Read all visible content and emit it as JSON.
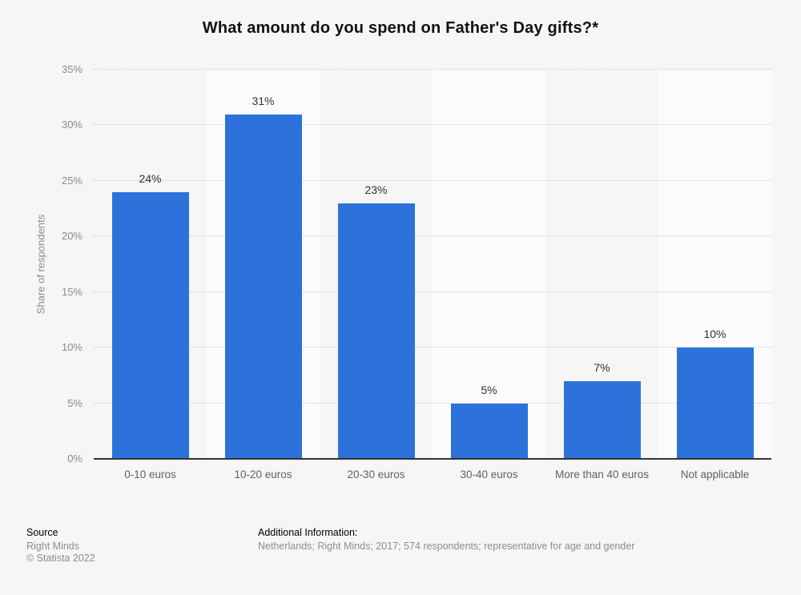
{
  "chart_data": {
    "type": "bar",
    "title": "What amount do you spend on Father's Day gifts?*",
    "categories": [
      "0-10 euros",
      "10-20 euros",
      "20-30 euros",
      "30-40 euros",
      "More than 40 euros",
      "Not applicable"
    ],
    "values": [
      24,
      31,
      23,
      5,
      7,
      10
    ],
    "value_labels": [
      "24%",
      "31%",
      "23%",
      "5%",
      "7%",
      "10%"
    ],
    "xlabel": "",
    "ylabel": "Share of respondents",
    "ylim": [
      0,
      35
    ],
    "ytick_step": 5,
    "ytick_labels": [
      "0%",
      "5%",
      "10%",
      "15%",
      "20%",
      "25%",
      "30%",
      "35%"
    ],
    "grid": "horizontal dotted",
    "legend_position": "none"
  },
  "footer": {
    "source_label": "Source",
    "source_value": "Right Minds",
    "copyright": "© Statista 2022",
    "additional_label": "Additional Information:",
    "additional_value": "Netherlands; Right Minds; 2017; 574 respondents; representative for age and gender"
  },
  "colors": {
    "background": "#f6f6f6",
    "bar": "#2c72da",
    "column_band": "#fbfbfb",
    "gridline": "#c9c9c9",
    "axis_line": "#333333"
  }
}
